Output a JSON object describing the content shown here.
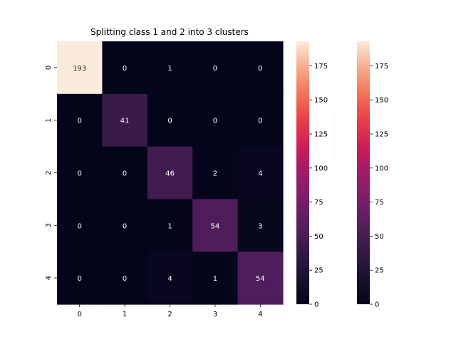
{
  "chart_data": {
    "type": "heatmap",
    "title": "Splitting class 1 and 2 into 3 clusters",
    "xlabel": "",
    "ylabel": "",
    "x_categories": [
      "0",
      "1",
      "2",
      "3",
      "4"
    ],
    "y_categories": [
      "0",
      "1",
      "2",
      "3",
      "4"
    ],
    "matrix": [
      [
        193,
        0,
        1,
        0,
        0
      ],
      [
        0,
        41,
        0,
        0,
        0
      ],
      [
        0,
        0,
        46,
        2,
        4
      ],
      [
        0,
        0,
        1,
        54,
        3
      ],
      [
        0,
        0,
        4,
        1,
        54
      ]
    ],
    "value_range": [
      0,
      193
    ],
    "colormap": "rocket",
    "colorbars": [
      {
        "ticks": [
          0,
          25,
          50,
          75,
          100,
          125,
          150,
          175
        ]
      },
      {
        "ticks": [
          0,
          25,
          50,
          75,
          100,
          125,
          150,
          175
        ]
      }
    ],
    "grid": false
  }
}
